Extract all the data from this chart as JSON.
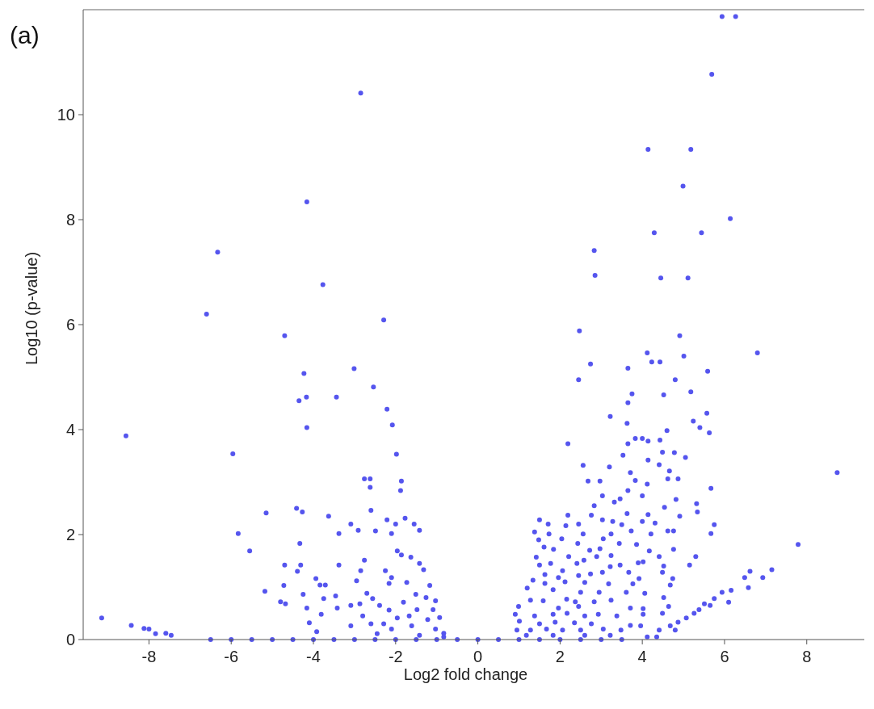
{
  "chart_data": {
    "type": "scatter",
    "xlabel": "Log2 fold change",
    "ylabel": "Log10 (p-value)",
    "annotations": [
      "(a)"
    ],
    "xlim": [
      -9.6,
      9.4
    ],
    "ylim": [
      0,
      12
    ],
    "xticks": [
      -8,
      -6,
      -4,
      -2,
      0,
      2,
      4,
      6,
      8
    ],
    "yticks": [
      0,
      2,
      4,
      6,
      8,
      10
    ],
    "grid": false,
    "marker": "circle",
    "series": [
      {
        "color": "#5555ee",
        "x": [
          -2.85,
          -4.16,
          -6.33,
          -3.77,
          -6.6,
          -2.29,
          -4.7,
          5.94,
          6.27,
          5.69,
          4.14,
          5.18,
          4.99,
          6.14,
          4.29,
          5.44,
          2.83,
          2.85,
          4.45,
          5.11,
          2.47,
          4.91,
          -3.01,
          -4.23,
          -2.54,
          -4.35,
          -4.17,
          -3.44,
          -2.21,
          -4.16,
          -2.08,
          -8.56,
          -5.96,
          -1.98,
          -2.76,
          -2.62,
          -2.62,
          -1.86,
          -1.88,
          -4.41,
          -5.15,
          -4.27,
          -2.6,
          -3.63,
          -3.09,
          -2.21,
          -1.77,
          -2,
          -1.55,
          -2.91,
          -2.49,
          -2.1,
          -1.42,
          -5.83,
          -3.38,
          -4.33,
          -5.55,
          -1.96,
          -1.86,
          -1.63,
          -4.7,
          -4.31,
          -3.38,
          -2.76,
          -1.42,
          -4.39,
          -2.85,
          -2.25,
          -1.32,
          -3.94,
          -2.1,
          -2.95,
          -3.84,
          -3.71,
          -4.72,
          -2.16,
          -1.73,
          -1.17,
          -5.18,
          -4.25,
          -2.7,
          -1.51,
          -3.46,
          -3.75,
          -2.56,
          -1.26,
          -4.8,
          -2.87,
          -1.81,
          -1.03,
          -3.09,
          -2.39,
          -4.68,
          -4.16,
          -1.48,
          -1.09,
          -3.42,
          -2.16,
          -2.8,
          -1.67,
          -0.93,
          -9.15,
          -3.81,
          -1.96,
          -1.22,
          -4.1,
          -2.6,
          -2.29,
          -3.09,
          -1.61,
          -8.43,
          -1.03,
          -2.1,
          -8.12,
          -8,
          -7.59,
          -7.84,
          -7.46,
          -3.92,
          -2.45,
          -0.83,
          -1.42,
          -0.83,
          6.8,
          4.12,
          2.74,
          4.23,
          4.43,
          5.01,
          3.65,
          5.59,
          2.45,
          4.8,
          3.75,
          4.52,
          5.18,
          3.65,
          3.22,
          5.57,
          3.63,
          5.24,
          5.4,
          4.6,
          5.63,
          2.19,
          3.83,
          4,
          3.65,
          4.43,
          4.14,
          3.53,
          4.49,
          4.78,
          5.05,
          4.14,
          2.56,
          3.2,
          4.41,
          4.66,
          3.71,
          8.74,
          2.68,
          2.97,
          3.83,
          4.62,
          4.87,
          4.12,
          5.67,
          3.65,
          4,
          3.03,
          3.32,
          3.46,
          2.83,
          4.82,
          5.32,
          4.54,
          5.34,
          2.19,
          2.76,
          3.63,
          4.14,
          4.91,
          1.5,
          1.71,
          2.14,
          2.45,
          3.03,
          3.28,
          3.5,
          4,
          4.31,
          5.75,
          1.38,
          1.73,
          2.56,
          3.24,
          3.73,
          4.21,
          4.62,
          4.76,
          5.67,
          1.48,
          2.04,
          2.43,
          3.05,
          3.44,
          3.86,
          1.61,
          1.84,
          2.72,
          2.97,
          4.76,
          4.17,
          7.79,
          1.42,
          2.21,
          2.58,
          2.89,
          3.24,
          4.41,
          5.3,
          1.5,
          1.77,
          2.41,
          3.22,
          3.46,
          3.9,
          4.02,
          5.15,
          4.52,
          6.62,
          7.15,
          2.06,
          2.74,
          3.03,
          3.67,
          4.49,
          1.63,
          1.96,
          6.49,
          6.93,
          2.45,
          3.92,
          4.74,
          1.34,
          1.63,
          2.12,
          2.6,
          3.18,
          3.77,
          4.68,
          6.58,
          6.16,
          1.2,
          1.83,
          2.5,
          2.95,
          3.61,
          5.94,
          4.06,
          4.52,
          5.75,
          1.28,
          1.59,
          2.16,
          2.37,
          2.83,
          3.24,
          6.1,
          5.51,
          5.65,
          0.99,
          1.96,
          2.45,
          3.71,
          4.02,
          4.64,
          5.38,
          5.26,
          0.91,
          1.38,
          1.83,
          2.17,
          2.6,
          2.93,
          3.38,
          4.02,
          4.49,
          5.07,
          4.87,
          1.01,
          1.5,
          1.88,
          2.35,
          2.76,
          3.71,
          3.96,
          4.68,
          0.95,
          1.28,
          1.67,
          2.06,
          2.5,
          3.05,
          3.48,
          4.41,
          4.8,
          1.18,
          1.83,
          2.6,
          3.22,
          4.12,
          4.35,
          -6.5,
          -6,
          -5.5,
          -5,
          -4.5,
          -4,
          -3.5,
          -3,
          -2.5,
          -2,
          -1.5,
          -1,
          -0.5,
          0,
          0.5,
          1,
          1.5,
          2,
          2.5,
          3,
          3.5
        ],
        "values": [
          10.41,
          8.34,
          7.38,
          6.76,
          6.2,
          6.09,
          5.79,
          11.87,
          11.87,
          10.77,
          9.34,
          9.34,
          8.64,
          8.02,
          7.75,
          7.75,
          7.41,
          6.94,
          6.89,
          6.89,
          5.88,
          5.79,
          5.16,
          5.07,
          4.81,
          4.55,
          4.62,
          4.62,
          4.39,
          4.04,
          4.09,
          3.88,
          3.54,
          3.53,
          3.06,
          3.06,
          2.9,
          3.02,
          2.84,
          2.5,
          2.41,
          2.43,
          2.46,
          2.35,
          2.2,
          2.28,
          2.31,
          2.2,
          2.2,
          2.08,
          2.07,
          2.02,
          2.08,
          2.02,
          2.02,
          1.83,
          1.69,
          1.69,
          1.61,
          1.57,
          1.42,
          1.42,
          1.42,
          1.51,
          1.45,
          1.3,
          1.31,
          1.31,
          1.33,
          1.16,
          1.18,
          1.12,
          1.04,
          1.04,
          1.03,
          1.07,
          1.09,
          1.03,
          0.92,
          0.86,
          0.88,
          0.86,
          0.83,
          0.78,
          0.78,
          0.8,
          0.72,
          0.68,
          0.71,
          0.74,
          0.65,
          0.65,
          0.68,
          0.6,
          0.57,
          0.57,
          0.6,
          0.56,
          0.45,
          0.45,
          0.42,
          0.41,
          0.48,
          0.41,
          0.38,
          0.32,
          0.3,
          0.3,
          0.26,
          0.26,
          0.27,
          0.2,
          0.2,
          0.21,
          0.2,
          0.12,
          0.11,
          0.08,
          0.15,
          0.11,
          0.12,
          0.08,
          0.05,
          5.46,
          5.46,
          5.25,
          5.29,
          5.29,
          5.4,
          5.17,
          5.11,
          4.95,
          4.95,
          4.68,
          4.66,
          4.72,
          4.51,
          4.25,
          4.31,
          4.12,
          4.16,
          4.04,
          3.98,
          3.94,
          3.73,
          3.83,
          3.83,
          3.73,
          3.8,
          3.78,
          3.51,
          3.57,
          3.56,
          3.47,
          3.42,
          3.32,
          3.29,
          3.33,
          3.21,
          3.18,
          3.18,
          3.02,
          3.02,
          3.03,
          3.06,
          3.06,
          2.96,
          2.88,
          2.84,
          2.74,
          2.74,
          2.62,
          2.68,
          2.55,
          2.67,
          2.59,
          2.52,
          2.43,
          2.37,
          2.37,
          2.4,
          2.38,
          2.35,
          2.28,
          2.2,
          2.17,
          2.2,
          2.28,
          2.25,
          2.19,
          2.25,
          2.22,
          2.19,
          2.05,
          2.01,
          2.01,
          2.01,
          2.07,
          2.01,
          2.07,
          2.07,
          2.02,
          1.9,
          1.92,
          1.83,
          1.92,
          1.83,
          1.81,
          1.76,
          1.72,
          1.7,
          1.73,
          1.72,
          1.69,
          1.81,
          1.57,
          1.58,
          1.51,
          1.58,
          1.6,
          1.58,
          1.58,
          1.42,
          1.45,
          1.45,
          1.39,
          1.42,
          1.46,
          1.48,
          1.42,
          1.4,
          1.3,
          1.33,
          1.31,
          1.25,
          1.28,
          1.28,
          1.28,
          1.24,
          1.18,
          1.18,
          1.18,
          1.22,
          1.16,
          1.16,
          1.13,
          1.07,
          1.1,
          1.09,
          1.06,
          1.06,
          1.04,
          0.99,
          0.94,
          0.98,
          0.95,
          0.9,
          0.9,
          0.9,
          0.9,
          0.88,
          0.8,
          0.78,
          0.75,
          0.74,
          0.77,
          0.72,
          0.72,
          0.75,
          0.71,
          0.68,
          0.65,
          0.63,
          0.6,
          0.63,
          0.6,
          0.59,
          0.63,
          0.57,
          0.5,
          0.48,
          0.45,
          0.48,
          0.5,
          0.45,
          0.48,
          0.45,
          0.48,
          0.5,
          0.41,
          0.33,
          0.35,
          0.3,
          0.33,
          0.32,
          0.3,
          0.27,
          0.26,
          0.26,
          0.18,
          0.18,
          0.2,
          0.18,
          0.18,
          0.2,
          0.18,
          0.18,
          0.18,
          0.08,
          0.08,
          0.08,
          0.08,
          0.05,
          0.05,
          0,
          0,
          0,
          0,
          0,
          0,
          0,
          0,
          0,
          0,
          0,
          0,
          0,
          0,
          0,
          0,
          0,
          0,
          0,
          0,
          0
        ]
      }
    ]
  }
}
